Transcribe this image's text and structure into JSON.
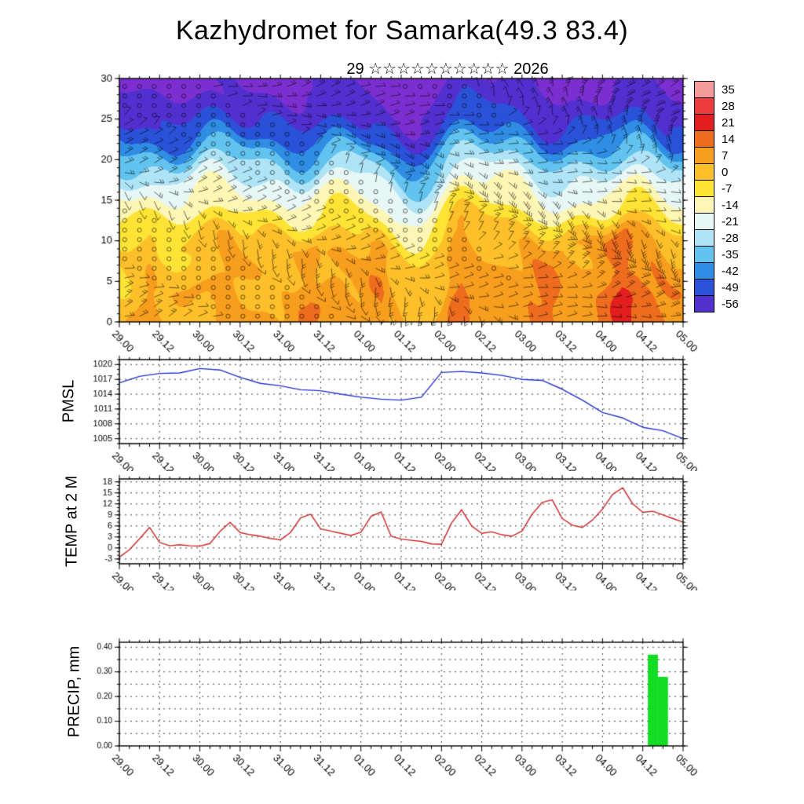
{
  "page": {
    "title": "Kazhydromet for Samarka(49.3 83.4)",
    "subtitle": "29 ☆☆☆☆☆☆☆☆☆☆ 2026",
    "background": "#ffffff"
  },
  "time_axis": {
    "range_hours": [
      0,
      168
    ],
    "major_step_hours": 12,
    "minor_step_hours": 3,
    "labels": [
      "29.00",
      "29.12",
      "30.00",
      "30.12",
      "31.00",
      "31.12",
      "01.00",
      "01.12",
      "02.00",
      "02.12",
      "03.00",
      "03.12",
      "04.00",
      "04.12",
      "05.00"
    ]
  },
  "chart_data": [
    {
      "id": "cross_section",
      "type": "heatmap",
      "description": "temperature time-height cross section with wind barbs",
      "yrange": [
        0,
        30
      ],
      "yticks": [
        0,
        5,
        10,
        15,
        20,
        25,
        30
      ],
      "colorbar_levels": [
        35,
        28,
        21,
        14,
        7,
        0,
        -7,
        -14,
        -21,
        -28,
        -35,
        -42,
        -49,
        -56
      ],
      "palette": [
        "#f49c9c",
        "#ee3b3b",
        "#e31e1e",
        "#ee6c1e",
        "#f89e1e",
        "#fdc02a",
        "#ffe436",
        "#fdf6b4",
        "#e6f7f5",
        "#aee4f6",
        "#62c3ef",
        "#2f8de4",
        "#2a52d8",
        "#5230d0",
        "#7c2fd0"
      ],
      "profile_z": [
        0,
        10,
        13,
        15,
        17,
        19,
        21,
        23,
        26,
        30
      ]
    },
    {
      "id": "pmsl",
      "type": "line",
      "label": "PMSL",
      "color": "#2233cc",
      "yrange": [
        1004,
        1021
      ],
      "yticks": [
        1005,
        1008,
        1011,
        1014,
        1017,
        1020
      ],
      "x": [
        0,
        6,
        12,
        18,
        24,
        30,
        36,
        42,
        48,
        54,
        60,
        66,
        72,
        78,
        84,
        90,
        96,
        102,
        108,
        114,
        120,
        126,
        132,
        138,
        144,
        150,
        156,
        162,
        168
      ],
      "values": [
        1016.3,
        1017.6,
        1018.2,
        1018.3,
        1019.2,
        1018.9,
        1017.4,
        1016.2,
        1015.7,
        1014.9,
        1014.7,
        1014.0,
        1013.4,
        1013.0,
        1012.8,
        1013.4,
        1018.4,
        1018.6,
        1018.3,
        1017.8,
        1017.0,
        1016.8,
        1015.0,
        1012.8,
        1010.3,
        1009.2,
        1007.3,
        1006.6,
        1005.0
      ]
    },
    {
      "id": "temp2m",
      "type": "line",
      "label": "TEMP at 2 M",
      "color": "#cc2222",
      "yrange": [
        -4.3,
        18.8
      ],
      "yticks": [
        -3,
        0,
        3,
        6,
        9,
        12,
        15,
        18
      ],
      "x": [
        0,
        3,
        6,
        9,
        12,
        15,
        18,
        21,
        24,
        27,
        30,
        33,
        36,
        39,
        42,
        45,
        48,
        51,
        54,
        57,
        60,
        63,
        66,
        69,
        72,
        75,
        78,
        81,
        84,
        87,
        90,
        93,
        96,
        99,
        102,
        105,
        108,
        111,
        114,
        117,
        120,
        123,
        126,
        129,
        132,
        135,
        138,
        141,
        144,
        147,
        150,
        153,
        156,
        159,
        162,
        165,
        168
      ],
      "values": [
        -2.5,
        -0.5,
        2.5,
        5.6,
        1.5,
        0.6,
        0.9,
        0.6,
        0.5,
        1.2,
        4.5,
        7.0,
        4.2,
        3.6,
        3.2,
        2.6,
        2.2,
        4.2,
        8.2,
        9.2,
        5.2,
        4.6,
        4.0,
        3.4,
        4.3,
        8.6,
        9.8,
        3.2,
        2.4,
        2.1,
        1.8,
        1.1,
        1.0,
        6.8,
        10.4,
        6.0,
        4.0,
        4.4,
        3.6,
        3.2,
        4.6,
        9.2,
        12.4,
        13.1,
        8.0,
        6.2,
        5.6,
        7.6,
        10.6,
        14.6,
        16.4,
        12.0,
        9.7,
        10.0,
        9.0,
        8.0,
        7.0
      ]
    },
    {
      "id": "precip",
      "type": "bar",
      "label": "PRECIP, mm",
      "color": "#12dd22",
      "yrange": [
        0,
        0.42
      ],
      "yticks": [
        0,
        0.1,
        0.2,
        0.3,
        0.4
      ],
      "ytick_labels": [
        "0.00",
        "0.10",
        "0.20",
        "0.30",
        "0.40"
      ],
      "grid_step": 0.05,
      "bars": [
        {
          "start_hour": 157.5,
          "width_hours": 3,
          "value": 0.37
        },
        {
          "start_hour": 160.5,
          "width_hours": 3,
          "value": 0.28
        }
      ]
    }
  ]
}
